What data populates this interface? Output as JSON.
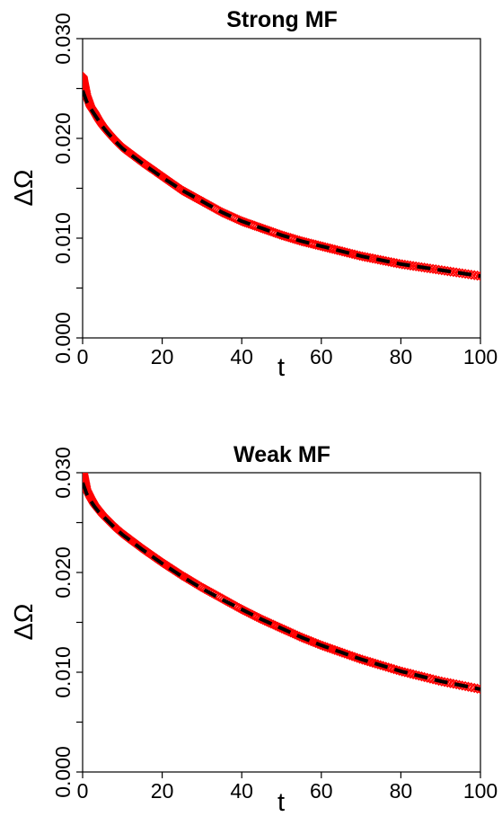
{
  "chart_data": [
    {
      "type": "scatter",
      "title": "Strong MF",
      "xlabel": "t",
      "ylabel": "ΔΩ",
      "xlim": [
        0,
        100
      ],
      "ylim": [
        0,
        0.03
      ],
      "x_ticks": [
        0,
        20,
        40,
        60,
        80,
        100
      ],
      "x_tick_labels": [
        "0",
        "20",
        "40",
        "60",
        "80",
        "100"
      ],
      "y_ticks": [
        0,
        0.005,
        0.01,
        0.015,
        0.02,
        0.025,
        0.03
      ],
      "y_tick_labels": [
        "0.000",
        "",
        "0.010",
        "",
        "0.020",
        "",
        "0.030"
      ],
      "grid": false,
      "series": [
        {
          "marker": "diamond-open",
          "color": "#ff0000",
          "x": [
            0,
            1,
            2,
            3,
            4,
            5,
            6,
            8,
            10,
            12,
            15,
            20,
            25,
            30,
            35,
            40,
            45,
            50,
            55,
            60,
            65,
            70,
            75,
            80,
            85,
            90,
            95,
            100
          ],
          "y": [
            0.0262,
            0.0243,
            0.0232,
            0.0226,
            0.0219,
            0.0213,
            0.0208,
            0.0199,
            0.0191,
            0.0185,
            0.0176,
            0.0162,
            0.0148,
            0.0137,
            0.0126,
            0.0117,
            0.011,
            0.0103,
            0.0097,
            0.0092,
            0.0087,
            0.0082,
            0.0078,
            0.0074,
            0.0071,
            0.0068,
            0.0065,
            0.0062
          ]
        },
        {
          "line": "dashed",
          "color": "#000000",
          "x": [
            0,
            1,
            2,
            3,
            4,
            5,
            6,
            8,
            10,
            12,
            15,
            20,
            25,
            30,
            35,
            40,
            45,
            50,
            55,
            60,
            65,
            70,
            75,
            80,
            85,
            90,
            95,
            100
          ],
          "y": [
            0.0248,
            0.0237,
            0.023,
            0.0224,
            0.0218,
            0.0212,
            0.0207,
            0.0198,
            0.019,
            0.0184,
            0.0175,
            0.0161,
            0.0148,
            0.0137,
            0.0126,
            0.0117,
            0.011,
            0.0103,
            0.0097,
            0.0092,
            0.0087,
            0.0082,
            0.0078,
            0.0074,
            0.0071,
            0.0068,
            0.0065,
            0.0062
          ]
        }
      ]
    },
    {
      "type": "scatter",
      "title": "Weak MF",
      "xlabel": "t",
      "ylabel": "ΔΩ",
      "xlim": [
        0,
        100
      ],
      "ylim": [
        0,
        0.03
      ],
      "x_ticks": [
        0,
        20,
        40,
        60,
        80,
        100
      ],
      "x_tick_labels": [
        "0",
        "20",
        "40",
        "60",
        "80",
        "100"
      ],
      "y_ticks": [
        0,
        0.005,
        0.01,
        0.015,
        0.02,
        0.025,
        0.03
      ],
      "y_tick_labels": [
        "0.000",
        "",
        "0.010",
        "",
        "0.020",
        "",
        "0.030"
      ],
      "grid": false,
      "series": [
        {
          "marker": "diamond-open",
          "color": "#ff0000",
          "x": [
            0,
            1,
            2,
            3,
            4,
            5,
            6,
            8,
            10,
            12,
            15,
            20,
            25,
            30,
            35,
            40,
            45,
            50,
            55,
            60,
            65,
            70,
            75,
            80,
            85,
            90,
            95,
            100
          ],
          "y": [
            0.0302,
            0.0283,
            0.0275,
            0.0268,
            0.0263,
            0.0258,
            0.0254,
            0.0246,
            0.0239,
            0.0233,
            0.0224,
            0.021,
            0.0197,
            0.0185,
            0.0174,
            0.0163,
            0.0153,
            0.0144,
            0.0135,
            0.0127,
            0.012,
            0.0113,
            0.0107,
            0.0101,
            0.0096,
            0.0091,
            0.0087,
            0.0083
          ]
        },
        {
          "line": "dashed",
          "color": "#000000",
          "x": [
            0,
            1,
            2,
            3,
            4,
            5,
            6,
            8,
            10,
            12,
            15,
            20,
            25,
            30,
            35,
            40,
            45,
            50,
            55,
            60,
            65,
            70,
            75,
            80,
            85,
            90,
            95,
            100
          ],
          "y": [
            0.029,
            0.0279,
            0.0272,
            0.0266,
            0.0261,
            0.0257,
            0.0253,
            0.0245,
            0.0238,
            0.0232,
            0.0223,
            0.0209,
            0.0196,
            0.0184,
            0.0173,
            0.0163,
            0.0153,
            0.0144,
            0.0135,
            0.0127,
            0.012,
            0.0113,
            0.0107,
            0.0101,
            0.0096,
            0.0091,
            0.0087,
            0.0083
          ]
        }
      ]
    }
  ]
}
